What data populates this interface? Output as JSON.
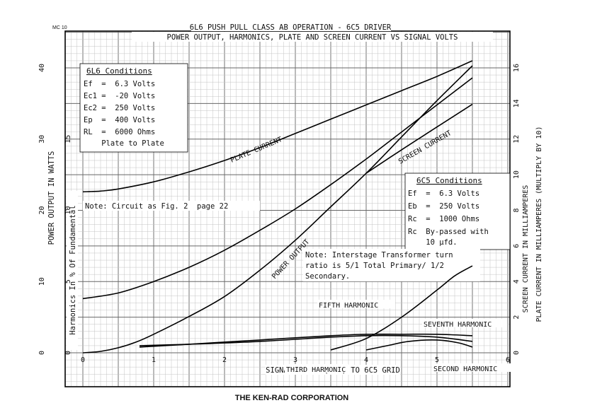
{
  "header": {
    "corner_code": "MC 10",
    "title": "6L6 PUSH PULL CLASS AB OPERATION - 6C5 DRIVER",
    "subtitle": "POWER OUTPUT, HARMONICS, PLATE AND SCREEN CURRENT VS SIGNAL VOLTS"
  },
  "footer": {
    "company": "THE KEN-RAD CORPORATION"
  },
  "conditions_6l6": {
    "heading": "6L6 Conditions",
    "lines": [
      "Ef  =  6.3 Volts",
      "Ec1 =  -20 Volts",
      "Ec2 =  250 Volts",
      "Ep  =  400 Volts",
      "RL  =  6000 Ohms",
      "    Plate to Plate"
    ]
  },
  "conditions_6c5": {
    "heading": "6C5 Conditions",
    "lines": [
      "Ef  =  6.3 Volts",
      "Eb  =  250 Volts",
      "Rc  =  1000 Ohms",
      "Rc  By-passed with",
      "    10 µfd."
    ]
  },
  "notes": {
    "circuit": "Note: Circuit as Fig. 2  page 22",
    "transformer": [
      "Note: Interstage Transformer turn",
      "ratio is 5/1 Total Primary/ 1/2",
      "Secondary."
    ]
  },
  "chart_data": {
    "type": "line",
    "title": "6L6 PUSH PULL CLASS AB OPERATION - 6C5 DRIVER",
    "subtitle": "POWER OUTPUT, HARMONICS, PLATE AND SCREEN CURRENT VS SIGNAL VOLTS",
    "xlabel": "SIGNAL VOLTS (RMS) TO 6C5 GRID",
    "xlim": [
      0,
      6
    ],
    "x_ticks": [
      "0",
      "1",
      "2",
      "3",
      "4",
      "5",
      "6"
    ],
    "axes": {
      "power": {
        "label": "POWER OUTPUT IN WATTS",
        "ylim": [
          0,
          40
        ],
        "ticks": [
          "0",
          "10",
          "20",
          "30",
          "40"
        ]
      },
      "harmonics": {
        "label": "Harmonics In % Of Fundamental",
        "ylim": [
          0,
          20
        ],
        "ticks": [
          "0",
          "5",
          "10",
          "15"
        ]
      },
      "screen": {
        "label": "SCREEN CURRENT IN MILLIAMPERES",
        "ylim": [
          0,
          16
        ],
        "ticks": [
          "0",
          "2",
          "4",
          "6",
          "8",
          "10",
          "12",
          "14",
          "16"
        ]
      },
      "plate": {
        "label": "PLATE CURRENT IN MILLIAMPERES (MULTIPLY BY 10)",
        "ylim": [
          0,
          16
        ]
      }
    },
    "grid": true,
    "series": [
      {
        "name": "PLATE CURRENT",
        "axis": "power",
        "x": [
          0,
          0.25,
          0.5,
          1.0,
          1.5,
          2.0,
          2.5,
          3.0,
          3.5,
          4.0,
          4.5,
          5.0,
          5.5
        ],
        "y": [
          22.6,
          22.7,
          23.0,
          24.0,
          25.4,
          27.0,
          28.8,
          30.8,
          32.8,
          34.8,
          36.8,
          38.8,
          41.0
        ]
      },
      {
        "name": "SCREEN CURRENT",
        "axis": "power",
        "x": [
          4.0,
          4.5,
          5.0,
          5.5
        ],
        "y": [
          25.2,
          28.5,
          31.7,
          34.9
        ]
      },
      {
        "name": "POWER OUTPUT",
        "axis": "power",
        "x": [
          0,
          0.25,
          0.5,
          0.75,
          1.0,
          1.5,
          2.0,
          2.5,
          3.0,
          3.5,
          4.0,
          4.5,
          5.0,
          5.5
        ],
        "y": [
          0,
          0.2,
          0.7,
          1.5,
          2.6,
          5.1,
          7.9,
          11.6,
          15.8,
          20.5,
          25.2,
          30.3,
          35.4,
          40.3
        ]
      },
      {
        "name": "",
        "axis": "harmonics",
        "x": [
          0,
          0.5,
          1.0,
          1.5,
          2.0,
          2.5,
          3.0,
          3.5,
          4.0,
          4.5,
          5.0,
          5.5
        ],
        "y": [
          3.8,
          4.2,
          5.0,
          6.0,
          7.2,
          8.6,
          10.1,
          11.8,
          13.6,
          15.5,
          17.4,
          19.3
        ]
      },
      {
        "name": "SECOND HARMONIC",
        "axis": "harmonics",
        "x": [
          3.5,
          4.0,
          4.5,
          5.0,
          5.25,
          5.5
        ],
        "y": [
          0.2,
          1.0,
          2.5,
          4.4,
          5.4,
          6.1
        ]
      },
      {
        "name": "THIRD HARMONIC",
        "axis": "harmonics",
        "x": [
          0.8,
          1.5,
          2.5,
          3.5,
          4.0,
          4.5,
          5.0,
          5.5
        ],
        "y": [
          0.4,
          0.6,
          0.9,
          1.2,
          1.3,
          1.3,
          1.3,
          1.2
        ]
      },
      {
        "name": "FIFTH HARMONIC",
        "axis": "harmonics",
        "x": [
          0.8,
          1.5,
          2.5,
          3.5,
          4.0,
          4.5,
          5.0,
          5.5
        ],
        "y": [
          0.5,
          0.6,
          0.8,
          1.1,
          1.2,
          1.2,
          1.1,
          0.8
        ]
      },
      {
        "name": "SEVENTH HARMONIC",
        "axis": "harmonics",
        "x": [
          4.0,
          4.3,
          4.6,
          5.0,
          5.3,
          5.5
        ],
        "y": [
          0.2,
          0.5,
          0.8,
          0.9,
          0.7,
          0.4
        ]
      }
    ]
  }
}
